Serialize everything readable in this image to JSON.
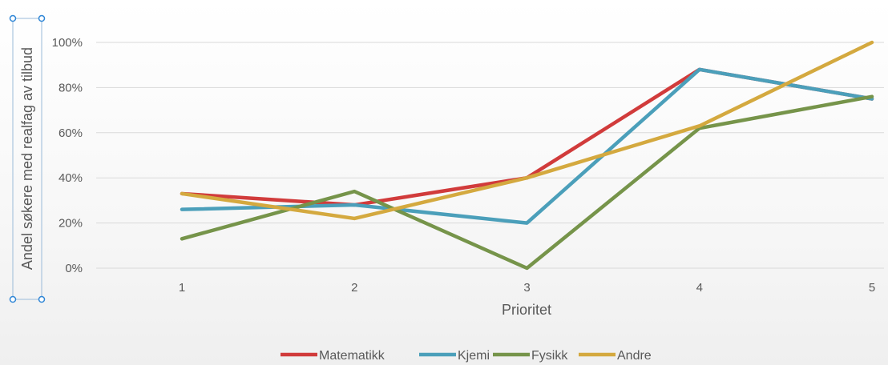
{
  "chart_data": {
    "type": "line",
    "xlabel": "Prioritet",
    "ylabel": "Andel søkere med realfag av tilbud",
    "categories": [
      "1",
      "2",
      "3",
      "4",
      "5"
    ],
    "y_ticks": [
      "0%",
      "20%",
      "40%",
      "60%",
      "80%",
      "100%"
    ],
    "ylim": [
      0,
      100
    ],
    "grid": true,
    "legend_position": "bottom",
    "series": [
      {
        "name": "Matematikk",
        "color": "#d13b3b",
        "values": [
          33,
          28,
          40,
          88,
          75
        ]
      },
      {
        "name": "Kjemi",
        "color": "#4b9fba",
        "values": [
          26,
          28,
          20,
          88,
          75
        ]
      },
      {
        "name": "Fysikk",
        "color": "#76944a",
        "values": [
          13,
          34,
          0,
          62,
          76
        ]
      },
      {
        "name": "Andre",
        "color": "#d4a93f",
        "values": [
          33,
          22,
          40,
          63,
          100
        ]
      }
    ]
  }
}
